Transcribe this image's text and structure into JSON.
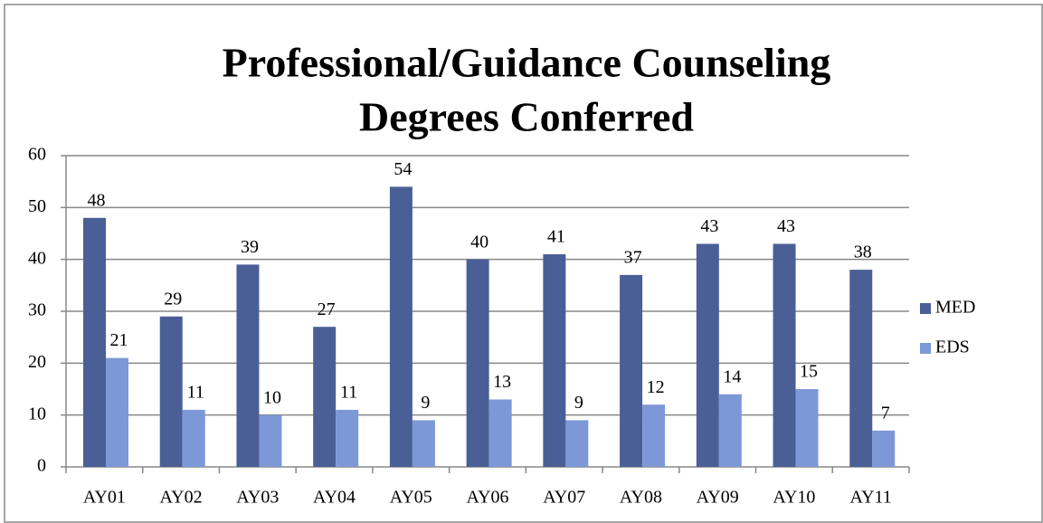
{
  "chart_data": {
    "type": "bar",
    "title": [
      "Professional/Guidance Counseling",
      "Degrees Conferred"
    ],
    "categories": [
      "AY01",
      "AY02",
      "AY03",
      "AY04",
      "AY05",
      "AY06",
      "AY07",
      "AY08",
      "AY09",
      "AY10",
      "AY11"
    ],
    "series": [
      {
        "name": "MED",
        "color": "#4b5f97",
        "values": [
          48,
          29,
          39,
          27,
          54,
          40,
          41,
          37,
          43,
          43,
          38
        ]
      },
      {
        "name": "EDS",
        "color": "#7d98d6",
        "values": [
          21,
          11,
          10,
          11,
          9,
          13,
          9,
          12,
          14,
          15,
          7
        ]
      }
    ],
    "ylim": [
      0,
      60
    ],
    "yticks": [
      0,
      10,
      20,
      30,
      40,
      50,
      60
    ],
    "grid": true,
    "legend": "right"
  }
}
